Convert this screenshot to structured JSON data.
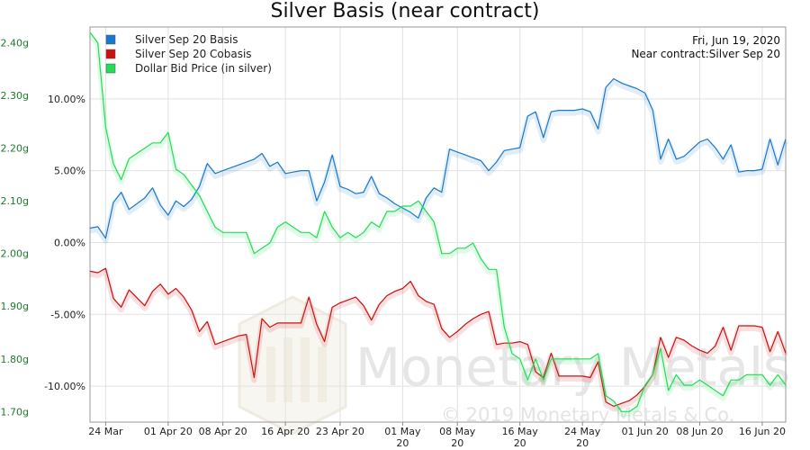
{
  "chart_data": {
    "type": "line",
    "title": "Silver Basis (near contract)",
    "annotations": [
      "Fri, Jun 19, 2020",
      "Near contract:Silver Sep 20"
    ],
    "watermark": {
      "brand": "Monetary Metals",
      "copyright": "© 2019 Monetary Metals & Co."
    },
    "x_tick_labels": [
      "24 Mar 20",
      "01 Apr 20",
      "08 Apr 20",
      "16 Apr 20",
      "23 Apr 20",
      "01 May 20",
      "08 May 20",
      "16 May 20",
      "24 May 20",
      "01 Jun 20",
      "08 Jun 20",
      "16 Jun 20"
    ],
    "x_tick_lines": [
      [
        "24 Mar"
      ],
      [
        "01 Apr 20"
      ],
      [
        "08 Apr 20"
      ],
      [
        "16 Apr 20"
      ],
      [
        "23 Apr 20"
      ],
      [
        "01 May",
        "20"
      ],
      [
        "08 May",
        "20"
      ],
      [
        "16 May",
        "20"
      ],
      [
        "24 May",
        "20"
      ],
      [
        "01 Jun 20"
      ],
      [
        "08 Jun 20"
      ],
      [
        "16 Jun 20"
      ]
    ],
    "x_tick_days": [
      2,
      10,
      17,
      25,
      32,
      40,
      47,
      55,
      63,
      71,
      78,
      86
    ],
    "x_start": "2020-03-22",
    "xlim_days": [
      0,
      89
    ],
    "y_right": {
      "label": "",
      "ylim": [
        -12.5,
        15.0
      ],
      "ticks": [
        "10.00%",
        "5.00%",
        "0.00%",
        "-5.00%",
        "-10.00%"
      ],
      "tick_values": [
        10,
        5,
        0,
        -5,
        -10
      ]
    },
    "y_left": {
      "label": "",
      "ylim": [
        1.68,
        2.43
      ],
      "ticks": [
        "2.40g",
        "2.30g",
        "2.20g",
        "2.10g",
        "2.00g",
        "1.90g",
        "1.80g",
        "1.70g"
      ],
      "tick_values": [
        2.4,
        2.3,
        2.2,
        2.1,
        2.0,
        1.9,
        1.8,
        1.7
      ]
    },
    "legend": {
      "position": "top-left"
    },
    "grid": true,
    "series": [
      {
        "name": "Silver Sep 20 Basis",
        "color": "#1a78cc",
        "axis": "right",
        "x": [
          0,
          1,
          2,
          3,
          4,
          5,
          7,
          8,
          9,
          10,
          11,
          12,
          13,
          14,
          15,
          16,
          17,
          18,
          19,
          20,
          21,
          22,
          23,
          24,
          25,
          26,
          27,
          28,
          29,
          30,
          31,
          32,
          33,
          34,
          35,
          36,
          37,
          38,
          39,
          40,
          41,
          42,
          43,
          44,
          45,
          46,
          47,
          48,
          49,
          50,
          51,
          52,
          53,
          54,
          55,
          56,
          57,
          58,
          59,
          60,
          61,
          62,
          63,
          64,
          65,
          66,
          67,
          68,
          69,
          70,
          71,
          72,
          73,
          74,
          75,
          76,
          77,
          78,
          79,
          80,
          81,
          82,
          83,
          84,
          85,
          86,
          87,
          88,
          89
        ],
        "y": [
          1.0,
          1.1,
          0.3,
          2.8,
          3.5,
          2.3,
          3.1,
          3.8,
          2.6,
          1.9,
          2.9,
          2.5,
          3.0,
          3.9,
          5.5,
          4.8,
          5.0,
          5.2,
          5.4,
          5.6,
          5.8,
          6.2,
          5.3,
          5.6,
          4.8,
          4.9,
          5.0,
          5.0,
          2.9,
          4.2,
          6.1,
          3.9,
          3.7,
          3.4,
          3.5,
          4.6,
          3.4,
          3.1,
          2.7,
          2.4,
          2.1,
          1.7,
          3.1,
          3.8,
          3.5,
          6.5,
          6.3,
          6.1,
          5.9,
          5.7,
          5.0,
          5.6,
          6.4,
          6.5,
          6.6,
          8.8,
          9.1,
          7.3,
          9.1,
          9.2,
          9.2,
          9.2,
          9.3,
          9.1,
          7.9,
          10.8,
          11.4,
          11.1,
          10.9,
          10.7,
          10.4,
          9.2,
          5.8,
          7.2,
          5.8,
          6.0,
          6.5,
          7.0,
          7.2,
          6.6,
          5.8,
          6.8,
          4.9,
          5.0,
          5.0,
          5.1,
          7.2,
          5.4,
          7.2
        ]
      },
      {
        "name": "Silver Sep 20 Cobasis",
        "color": "#cc1111",
        "axis": "right",
        "x": [
          0,
          1,
          2,
          3,
          4,
          5,
          7,
          8,
          9,
          10,
          11,
          12,
          13,
          14,
          15,
          16,
          17,
          18,
          19,
          20,
          21,
          22,
          23,
          24,
          25,
          26,
          27,
          28,
          29,
          30,
          31,
          32,
          33,
          34,
          35,
          36,
          37,
          38,
          39,
          40,
          41,
          42,
          43,
          44,
          45,
          46,
          47,
          48,
          49,
          50,
          51,
          52,
          53,
          54,
          55,
          56,
          57,
          58,
          59,
          60,
          61,
          62,
          63,
          64,
          65,
          66,
          67,
          68,
          69,
          70,
          71,
          72,
          73,
          74,
          75,
          76,
          77,
          78,
          79,
          80,
          81,
          82,
          83,
          84,
          85,
          86,
          87,
          88,
          89
        ],
        "y": [
          -2.0,
          -2.1,
          -1.8,
          -3.9,
          -4.5,
          -3.3,
          -4.4,
          -3.4,
          -2.9,
          -3.6,
          -3.2,
          -3.8,
          -4.7,
          -6.2,
          -5.5,
          -7.1,
          -6.9,
          -6.7,
          -6.5,
          -6.4,
          -9.4,
          -5.3,
          -5.9,
          -5.6,
          -5.6,
          -5.6,
          -5.6,
          -3.8,
          -5.7,
          -6.9,
          -4.5,
          -4.2,
          -4.0,
          -3.8,
          -4.4,
          -5.4,
          -4.3,
          -3.7,
          -3.4,
          -3.2,
          -2.7,
          -3.7,
          -4.1,
          -4.3,
          -6.0,
          -6.6,
          -6.2,
          -5.7,
          -5.3,
          -5.0,
          -4.8,
          -7.1,
          -7.0,
          -7.0,
          -6.9,
          -7.1,
          -9.0,
          -9.4,
          -7.7,
          -9.3,
          -9.3,
          -9.3,
          -9.3,
          -9.4,
          -8.3,
          -11.1,
          -11.4,
          -11.2,
          -11.0,
          -10.6,
          -10.0,
          -9.2,
          -6.6,
          -8.0,
          -6.6,
          -6.8,
          -7.2,
          -7.5,
          -7.7,
          -7.2,
          -5.9,
          -7.5,
          -5.8,
          -5.8,
          -5.8,
          -5.9,
          -7.6,
          -6.2,
          -7.7
        ]
      },
      {
        "name": "Dollar Bid Price (in silver)",
        "color": "#22dd55",
        "axis": "left",
        "x": [
          0,
          1,
          2,
          3,
          4,
          5,
          7,
          8,
          9,
          10,
          11,
          12,
          13,
          14,
          15,
          16,
          17,
          18,
          19,
          20,
          21,
          22,
          23,
          24,
          25,
          26,
          27,
          28,
          29,
          30,
          31,
          32,
          33,
          34,
          35,
          36,
          37,
          38,
          39,
          40,
          41,
          42,
          43,
          44,
          45,
          46,
          47,
          48,
          49,
          50,
          51,
          52,
          53,
          54,
          55,
          56,
          57,
          58,
          59,
          60,
          61,
          62,
          63,
          64,
          65,
          66,
          67,
          68,
          69,
          70,
          71,
          72,
          73,
          74,
          75,
          76,
          77,
          78,
          79,
          80,
          81,
          82,
          83,
          84,
          85,
          86,
          87,
          88,
          89
        ],
        "y": [
          2.42,
          2.4,
          2.24,
          2.17,
          2.14,
          2.18,
          2.2,
          2.21,
          2.21,
          2.23,
          2.16,
          2.15,
          2.13,
          2.11,
          2.08,
          2.05,
          2.04,
          2.04,
          2.04,
          2.04,
          2.0,
          2.01,
          2.02,
          2.05,
          2.06,
          2.05,
          2.04,
          2.04,
          2.03,
          2.08,
          2.05,
          2.03,
          2.04,
          2.03,
          2.04,
          2.06,
          2.05,
          2.08,
          2.08,
          2.09,
          2.09,
          2.1,
          2.08,
          2.06,
          2.0,
          2.0,
          2.01,
          2.01,
          2.02,
          1.99,
          1.97,
          1.97,
          1.86,
          1.81,
          1.8,
          1.76,
          1.8,
          1.76,
          1.8,
          1.8,
          1.8,
          1.8,
          1.8,
          1.8,
          1.81,
          1.73,
          1.72,
          1.7,
          1.7,
          1.71,
          1.75,
          1.77,
          1.82,
          1.74,
          1.77,
          1.75,
          1.75,
          1.76,
          1.75,
          1.74,
          1.73,
          1.76,
          1.76,
          1.77,
          1.77,
          1.77,
          1.75,
          1.77,
          1.75
        ]
      }
    ]
  }
}
